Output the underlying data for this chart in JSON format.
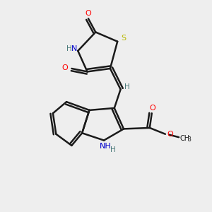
{
  "bg_color": "#eeeeee",
  "bond_color": "#1a1a1a",
  "colors": {
    "O": "#ff0000",
    "N": "#0000cc",
    "S": "#b8b800",
    "H": "#4a7a7a",
    "C": "#1a1a1a"
  },
  "lw": 1.8
}
